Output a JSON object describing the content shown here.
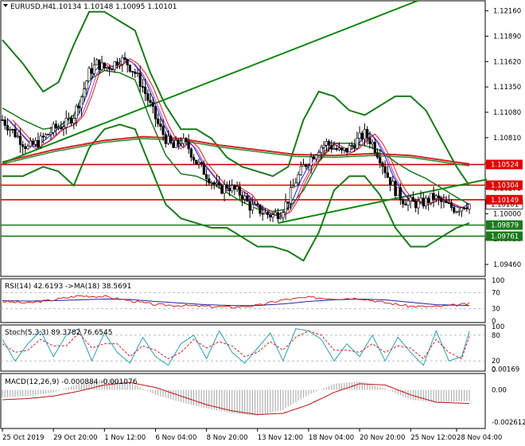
{
  "header": {
    "symbol_label": "EURUSD,H4",
    "ohlc_label": "1.10134 1.10148 1.10095 1.10101"
  },
  "colors": {
    "bollinger": "#1a7a1a",
    "trendline": "#118811",
    "level": "#e00000",
    "ma_red": "#d42020",
    "ma_green": "#2b8a2b",
    "ma_blue": "#2020c8",
    "ma_purple": "#b040b0",
    "candle_fill": "#ffffff",
    "candle_stroke": "#000000",
    "rsi": "#d42020",
    "rsi_ma": "#2020a0",
    "stoch_main": "#2aa0b0",
    "stoch_signal": "#d42020",
    "macd_hist": "#b0b0b0",
    "macd_signal": "#c01010"
  },
  "price_axis": {
    "ticks": [
      "1.12160",
      "1.11890",
      "1.11620",
      "1.11350",
      "1.11080",
      "1.10810",
      "1.10540",
      "1.10270",
      "1.10000",
      "1.09730",
      "1.09460"
    ],
    "current_price": "1.10101"
  },
  "levels": [
    {
      "label": "1.10524",
      "value": 1.10524,
      "color": "#e00000"
    },
    {
      "label": "1.10304",
      "value": 1.10304,
      "color": "#e00000"
    },
    {
      "label": "1.10149",
      "value": 1.10149,
      "color": "#e00000"
    },
    {
      "label": "1.09879",
      "value": 1.09879,
      "color": "#1a7a1a"
    },
    {
      "label": "1.09761",
      "value": 1.09761,
      "color": "#1a7a1a"
    }
  ],
  "time_axis": [
    "25 Oct 2019",
    "29 Oct 20:00",
    "1 Nov 12:00",
    "6 Nov 04:00",
    "8 Nov 20:00",
    "13 Nov 12:00",
    "18 Nov 04:00",
    "20 Nov 20:00",
    "25 Nov 12:00",
    "28 Nov 04:00"
  ],
  "chart_data": [
    {
      "type": "candlestick",
      "symbol": "EURUSD",
      "timeframe": "H4",
      "ylim": [
        1.0935,
        1.1225
      ],
      "last_ohlc": [
        1.10134,
        1.10148,
        1.10095,
        1.10101
      ],
      "close_path": [
        [
          0,
          1.11
        ],
        [
          5,
          1.1085
        ],
        [
          10,
          1.107
        ],
        [
          15,
          1.1078
        ],
        [
          20,
          1.109
        ],
        [
          25,
          1.1096
        ],
        [
          28,
          1.1105
        ],
        [
          31,
          1.1125
        ],
        [
          34,
          1.115
        ],
        [
          37,
          1.116
        ],
        [
          40,
          1.1155
        ],
        [
          43,
          1.1158
        ],
        [
          46,
          1.1165
        ],
        [
          49,
          1.116
        ],
        [
          52,
          1.115
        ],
        [
          55,
          1.1135
        ],
        [
          58,
          1.1115
        ],
        [
          61,
          1.1095
        ],
        [
          64,
          1.108
        ],
        [
          67,
          1.107
        ],
        [
          70,
          1.1078
        ],
        [
          73,
          1.107
        ],
        [
          76,
          1.1055
        ],
        [
          79,
          1.1045
        ],
        [
          82,
          1.1035
        ],
        [
          85,
          1.1025
        ],
        [
          88,
          1.103
        ],
        [
          91,
          1.1025
        ],
        [
          94,
          1.102
        ],
        [
          97,
          1.1008
        ],
        [
          100,
          1.1005
        ],
        [
          103,
          1.1
        ],
        [
          106,
          1.0998
        ],
        [
          109,
          1.1002
        ],
        [
          112,
          1.1015
        ],
        [
          115,
          1.1035
        ],
        [
          118,
          1.105
        ],
        [
          121,
          1.106
        ],
        [
          124,
          1.107
        ],
        [
          127,
          1.1075
        ],
        [
          130,
          1.107
        ],
        [
          133,
          1.1065
        ],
        [
          136,
          1.107
        ],
        [
          139,
          1.1078
        ],
        [
          142,
          1.1085
        ],
        [
          145,
          1.1075
        ],
        [
          148,
          1.106
        ],
        [
          151,
          1.104
        ],
        [
          154,
          1.1025
        ],
        [
          157,
          1.1015
        ],
        [
          160,
          1.1012
        ],
        [
          163,
          1.101
        ],
        [
          166,
          1.1013
        ],
        [
          169,
          1.1018
        ],
        [
          172,
          1.1012
        ],
        [
          175,
          1.1008
        ],
        [
          178,
          1.1005
        ],
        [
          181,
          1.101
        ],
        [
          183,
          1.101
        ]
      ],
      "upper_band": [
        [
          0,
          1.1185
        ],
        [
          8,
          1.116
        ],
        [
          16,
          1.113
        ],
        [
          22,
          1.114
        ],
        [
          28,
          1.118
        ],
        [
          34,
          1.1215
        ],
        [
          40,
          1.1215
        ],
        [
          46,
          1.1205
        ],
        [
          52,
          1.1195
        ],
        [
          58,
          1.115
        ],
        [
          64,
          1.1115
        ],
        [
          70,
          1.109
        ],
        [
          76,
          1.109
        ],
        [
          82,
          1.108
        ],
        [
          88,
          1.106
        ],
        [
          94,
          1.105
        ],
        [
          100,
          1.1045
        ],
        [
          106,
          1.104
        ],
        [
          112,
          1.105
        ],
        [
          118,
          1.11
        ],
        [
          124,
          1.113
        ],
        [
          130,
          1.1125
        ],
        [
          136,
          1.111
        ],
        [
          142,
          1.1105
        ],
        [
          148,
          1.1115
        ],
        [
          154,
          1.1125
        ],
        [
          160,
          1.1125
        ],
        [
          166,
          1.111
        ],
        [
          172,
          1.108
        ],
        [
          178,
          1.105
        ],
        [
          183,
          1.103
        ]
      ],
      "lower_band": [
        [
          0,
          1.104
        ],
        [
          8,
          1.104
        ],
        [
          16,
          1.105
        ],
        [
          22,
          1.1045
        ],
        [
          28,
          1.103
        ],
        [
          34,
          1.107
        ],
        [
          40,
          1.109
        ],
        [
          46,
          1.1095
        ],
        [
          52,
          1.109
        ],
        [
          58,
          1.105
        ],
        [
          64,
          1.101
        ],
        [
          70,
          1.0995
        ],
        [
          76,
          1.099
        ],
        [
          82,
          1.0985
        ],
        [
          88,
          1.0985
        ],
        [
          94,
          1.0975
        ],
        [
          100,
          1.0965
        ],
        [
          106,
          1.0965
        ],
        [
          112,
          1.096
        ],
        [
          118,
          1.095
        ],
        [
          124,
          1.098
        ],
        [
          130,
          1.1025
        ],
        [
          136,
          1.104
        ],
        [
          142,
          1.104
        ],
        [
          148,
          1.102
        ],
        [
          154,
          1.0985
        ],
        [
          160,
          1.0965
        ],
        [
          166,
          1.0965
        ],
        [
          172,
          1.0975
        ],
        [
          178,
          1.0985
        ],
        [
          183,
          1.099
        ]
      ],
      "trendline_up": [
        [
          0,
          1.1054
        ],
        [
          163,
          1.1227
        ]
      ],
      "trendline_support": [
        [
          108,
          1.099
        ],
        [
          183,
          1.1034
        ]
      ],
      "ma_long": [
        [
          0,
          1.1055
        ],
        [
          20,
          1.1068
        ],
        [
          40,
          1.1078
        ],
        [
          55,
          1.1082
        ],
        [
          70,
          1.108
        ],
        [
          85,
          1.1073
        ],
        [
          100,
          1.1068
        ],
        [
          115,
          1.1063
        ],
        [
          130,
          1.1062
        ],
        [
          145,
          1.1064
        ],
        [
          160,
          1.1062
        ],
        [
          175,
          1.1056
        ],
        [
          183,
          1.1053
        ]
      ]
    },
    {
      "type": "line",
      "name": "RSI(14)",
      "label": "RSI(14) 42.6193 ->MA(18) 38.5691",
      "ylim": [
        0,
        100
      ],
      "levels": [
        70,
        30
      ],
      "tick_labels": [
        "100",
        "70",
        "30",
        "0"
      ],
      "rsi_x": [
        0,
        10,
        20,
        30,
        40,
        50,
        60,
        70,
        80,
        90,
        100,
        110,
        120,
        130,
        140,
        150,
        160,
        170,
        183
      ],
      "rsi_values": [
        48,
        44,
        52,
        62,
        60,
        50,
        40,
        38,
        36,
        34,
        38,
        52,
        58,
        55,
        56,
        45,
        36,
        35,
        42
      ],
      "ma_values": [
        50,
        49,
        50,
        52,
        54,
        53,
        48,
        44,
        40,
        38,
        38,
        42,
        48,
        52,
        54,
        52,
        46,
        40,
        38
      ]
    },
    {
      "type": "line",
      "name": "Stoch(5,3,3)",
      "label": "Stoch(5,3,3) 89.3782 76.6545",
      "ylim": [
        0,
        100
      ],
      "levels": [
        80,
        20
      ],
      "tick_labels": [
        "100",
        "80",
        "20",
        "0"
      ],
      "main_x": [
        0,
        5,
        10,
        15,
        20,
        25,
        30,
        35,
        40,
        45,
        50,
        55,
        60,
        65,
        70,
        75,
        80,
        85,
        90,
        95,
        100,
        105,
        110,
        115,
        120,
        125,
        130,
        135,
        140,
        145,
        150,
        155,
        160,
        165,
        170,
        175,
        180,
        183
      ],
      "main_values": [
        70,
        20,
        60,
        90,
        30,
        80,
        95,
        20,
        85,
        40,
        15,
        75,
        30,
        10,
        60,
        80,
        25,
        90,
        40,
        15,
        50,
        85,
        20,
        95,
        90,
        70,
        20,
        60,
        30,
        80,
        20,
        75,
        40,
        10,
        90,
        20,
        30,
        89
      ],
      "signal_values": [
        60,
        40,
        45,
        70,
        55,
        55,
        85,
        50,
        60,
        60,
        30,
        55,
        45,
        25,
        40,
        70,
        50,
        65,
        55,
        30,
        40,
        65,
        45,
        75,
        90,
        80,
        45,
        45,
        40,
        60,
        40,
        55,
        50,
        25,
        70,
        40,
        25,
        77
      ]
    },
    {
      "type": "bar",
      "name": "MACD(12,26,9)",
      "label": "MACD(12,26,9) -0.000884 -0.001076",
      "ylim": [
        -0.003,
        0.0012
      ],
      "tick_labels": [
        "0.00169",
        "0.00",
        "-0.002612"
      ],
      "hist_x": [
        0,
        10,
        20,
        30,
        40,
        50,
        60,
        70,
        80,
        90,
        100,
        110,
        120,
        130,
        140,
        150,
        160,
        170,
        183
      ],
      "hist_values": [
        -0.0006,
        -0.0005,
        -0.0002,
        0.0005,
        0.0009,
        0.0006,
        -0.0004,
        -0.001,
        -0.0015,
        -0.0019,
        -0.0021,
        -0.0016,
        -0.0004,
        0.0005,
        0.0007,
        0.0001,
        -0.0008,
        -0.001,
        -0.0009
      ],
      "signal_values": [
        -0.0008,
        -0.0007,
        -0.0005,
        -0.0001,
        0.0004,
        0.0006,
        0.0002,
        -0.0005,
        -0.0012,
        -0.0017,
        -0.002,
        -0.0019,
        -0.0012,
        -0.0002,
        0.0005,
        0.0004,
        -0.0004,
        -0.001,
        -0.0011
      ]
    }
  ]
}
